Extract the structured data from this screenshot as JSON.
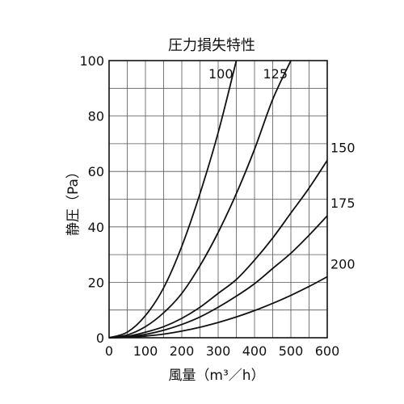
{
  "chart_data": {
    "type": "line",
    "title": "圧力損失特性",
    "xlabel": "風量（m³／h）",
    "ylabel": "静圧（Pa）",
    "xlim": [
      0,
      600
    ],
    "ylim": [
      0,
      100
    ],
    "xticks": [
      0,
      100,
      200,
      300,
      400,
      500,
      600
    ],
    "yticks": [
      0,
      20,
      40,
      60,
      80,
      100
    ],
    "x_minor_step": 50,
    "y_minor_step": 10,
    "grid": true,
    "legend": "none",
    "line_color": "#111111",
    "series": [
      {
        "name": "100",
        "x": [
          0,
          50,
          100,
          150,
          200,
          250,
          300,
          350
        ],
        "y": [
          0,
          2,
          8,
          18,
          33,
          52,
          74,
          100
        ]
      },
      {
        "name": "125",
        "x": [
          0,
          50,
          100,
          150,
          200,
          250,
          300,
          350,
          400,
          450,
          500
        ],
        "y": [
          0,
          1,
          4,
          9,
          16,
          26,
          38,
          52,
          68,
          86,
          100
        ]
      },
      {
        "name": "150",
        "x": [
          0,
          50,
          100,
          150,
          200,
          250,
          300,
          350,
          400,
          450,
          500,
          550,
          600
        ],
        "y": [
          0,
          0.5,
          2,
          4,
          7,
          11,
          16,
          21,
          28,
          36,
          45,
          54,
          64
        ]
      },
      {
        "name": "175",
        "x": [
          0,
          50,
          100,
          150,
          200,
          250,
          300,
          350,
          400,
          450,
          500,
          550,
          600
        ],
        "y": [
          0,
          0.3,
          1.2,
          2.7,
          4.8,
          7.5,
          11,
          15,
          19.5,
          25,
          30.5,
          37,
          44
        ]
      },
      {
        "name": "200",
        "x": [
          0,
          50,
          100,
          150,
          200,
          250,
          300,
          350,
          400,
          450,
          500,
          550,
          600
        ],
        "y": [
          0,
          0.15,
          0.6,
          1.3,
          2.4,
          3.8,
          5.5,
          7.5,
          9.8,
          12.4,
          15.3,
          18.5,
          22
        ]
      }
    ]
  }
}
